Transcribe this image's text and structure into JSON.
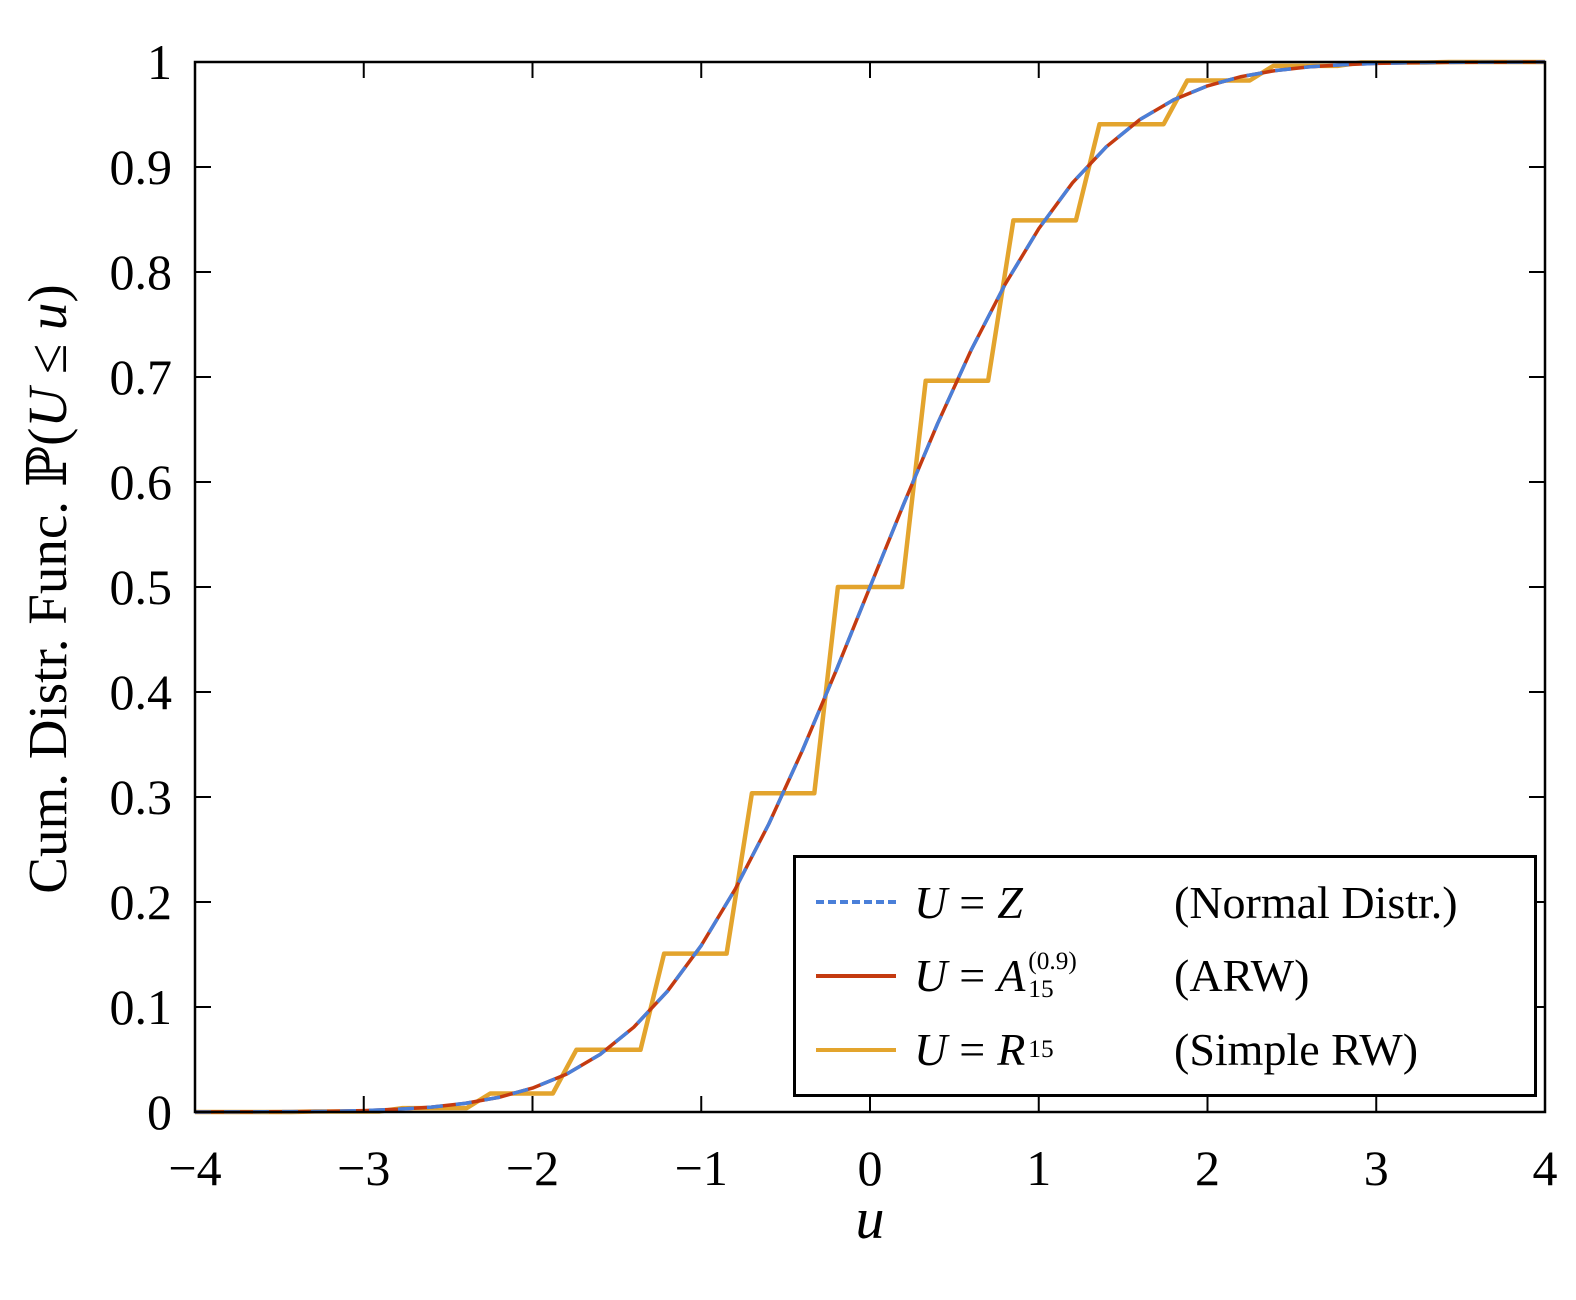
{
  "axes": {
    "xlabel": "u",
    "ylabel_prefix": "Cum. Distr. Func.",
    "ylabel_P": "  ℙ(",
    "ylabel_U": "U",
    "ylabel_leq": " ≤ ",
    "ylabel_u": "u",
    "ylabel_close": ")"
  },
  "legend": {
    "entries": [
      {
        "var": "U",
        "eq": "=",
        "sym": "Z",
        "sup": "",
        "sub": "",
        "note": "(Normal Distr.)"
      },
      {
        "var": "U",
        "eq": "=",
        "sym": "A",
        "sup": "(0.9)",
        "sub": "15",
        "note": "(ARW)"
      },
      {
        "var": "U",
        "eq": "=",
        "sym": "R",
        "sup": "",
        "sub": "15",
        "note": "(Simple RW)"
      }
    ]
  },
  "chart_data": {
    "type": "line",
    "title": "",
    "xlabel": "u",
    "ylabel": "Cum. Distr. Func. ℙ(U ≤ u)",
    "xlim": [
      -4,
      4
    ],
    "ylim": [
      0,
      1
    ],
    "grid": false,
    "legend_position": "lower right",
    "xticks": [
      -4,
      -3,
      -2,
      -1,
      0,
      1,
      2,
      3,
      4
    ],
    "xtick_labels": [
      "−4",
      "−3",
      "−2",
      "−1",
      "0",
      "1",
      "2",
      "3",
      "4"
    ],
    "yticks": [
      0,
      0.1,
      0.2,
      0.3,
      0.4,
      0.5,
      0.6,
      0.7,
      0.8,
      0.9,
      1
    ],
    "ytick_labels": [
      "0",
      "0.1",
      "0.2",
      "0.3",
      "0.4",
      "0.5",
      "0.6",
      "0.7",
      "0.8",
      "0.9",
      "1"
    ],
    "x_grid": [
      -4,
      -3.8,
      -3.6,
      -3.4,
      -3.2,
      -3,
      -2.8,
      -2.6,
      -2.4,
      -2.2,
      -2,
      -1.8,
      -1.6,
      -1.4,
      -1.2,
      -1,
      -0.8,
      -0.6,
      -0.4,
      -0.2,
      0,
      0.2,
      0.4,
      0.6,
      0.8,
      1,
      1.2,
      1.4,
      1.6,
      1.8,
      2,
      2.2,
      2.4,
      2.6,
      2.8,
      3,
      3.2,
      3.4,
      3.6,
      3.8,
      4
    ],
    "series": [
      {
        "name": "U = Z  (Normal Distr.)",
        "style": "dashed",
        "color": "#4A7FD9",
        "width": 3.5,
        "values": [
          3e-05,
          7e-05,
          0.00016,
          0.00034,
          0.00069,
          0.00135,
          0.00256,
          0.00466,
          0.0082,
          0.0139,
          0.02275,
          0.03593,
          0.0548,
          0.08076,
          0.11507,
          0.15866,
          0.21186,
          0.27425,
          0.34458,
          0.42074,
          0.5,
          0.57926,
          0.65542,
          0.72575,
          0.78814,
          0.84134,
          0.88493,
          0.91924,
          0.9452,
          0.96407,
          0.97725,
          0.9861,
          0.9918,
          0.99534,
          0.99744,
          0.99865,
          0.99931,
          0.99966,
          0.99984,
          0.99993,
          0.99997
        ]
      },
      {
        "name": "U = A15^(0.9)  (ARW)",
        "style": "solid",
        "color": "#C43A10",
        "width": 3.5,
        "values": [
          3e-05,
          7e-05,
          0.00016,
          0.00034,
          0.00069,
          0.00135,
          0.00256,
          0.00466,
          0.0082,
          0.0139,
          0.02275,
          0.03593,
          0.0548,
          0.08076,
          0.11507,
          0.15866,
          0.21186,
          0.27425,
          0.34458,
          0.42074,
          0.5,
          0.57926,
          0.65542,
          0.72575,
          0.78814,
          0.84134,
          0.88493,
          0.91924,
          0.9452,
          0.96407,
          0.97725,
          0.9861,
          0.9918,
          0.99534,
          0.99744,
          0.99865,
          0.99931,
          0.99966,
          0.99984,
          0.99993,
          0.99997
        ]
      },
      {
        "name": "U = R15  (Simple RW)",
        "style": "solid",
        "color": "#E3A42D",
        "width": 4.5,
        "points": [
          [
            -4,
            2e-05
          ],
          [
            -3.94,
            2e-05
          ],
          [
            -3.8,
            3e-05
          ],
          [
            -3.43,
            3e-05
          ],
          [
            -3.29,
            0.00049
          ],
          [
            -2.91,
            0.00049
          ],
          [
            -2.77,
            0.00369
          ],
          [
            -2.39,
            0.00369
          ],
          [
            -2.25,
            0.01758
          ],
          [
            -1.88,
            0.01758
          ],
          [
            -1.74,
            0.05923
          ],
          [
            -1.36,
            0.05923
          ],
          [
            -1.22,
            0.15088
          ],
          [
            -0.85,
            0.15088
          ],
          [
            -0.7,
            0.30362
          ],
          [
            -0.33,
            0.30362
          ],
          [
            -0.19,
            0.5
          ],
          [
            0.19,
            0.5
          ],
          [
            0.33,
            0.69638
          ],
          [
            0.7,
            0.69638
          ],
          [
            0.85,
            0.84912
          ],
          [
            1.22,
            0.84912
          ],
          [
            1.36,
            0.94076
          ],
          [
            1.74,
            0.94076
          ],
          [
            1.88,
            0.98242
          ],
          [
            2.25,
            0.98242
          ],
          [
            2.39,
            0.99631
          ],
          [
            2.77,
            0.99631
          ],
          [
            2.91,
            0.99951
          ],
          [
            3.29,
            0.99951
          ],
          [
            3.43,
            0.99997
          ],
          [
            3.8,
            0.99997
          ],
          [
            3.94,
            1
          ],
          [
            4,
            1
          ]
        ]
      }
    ]
  }
}
